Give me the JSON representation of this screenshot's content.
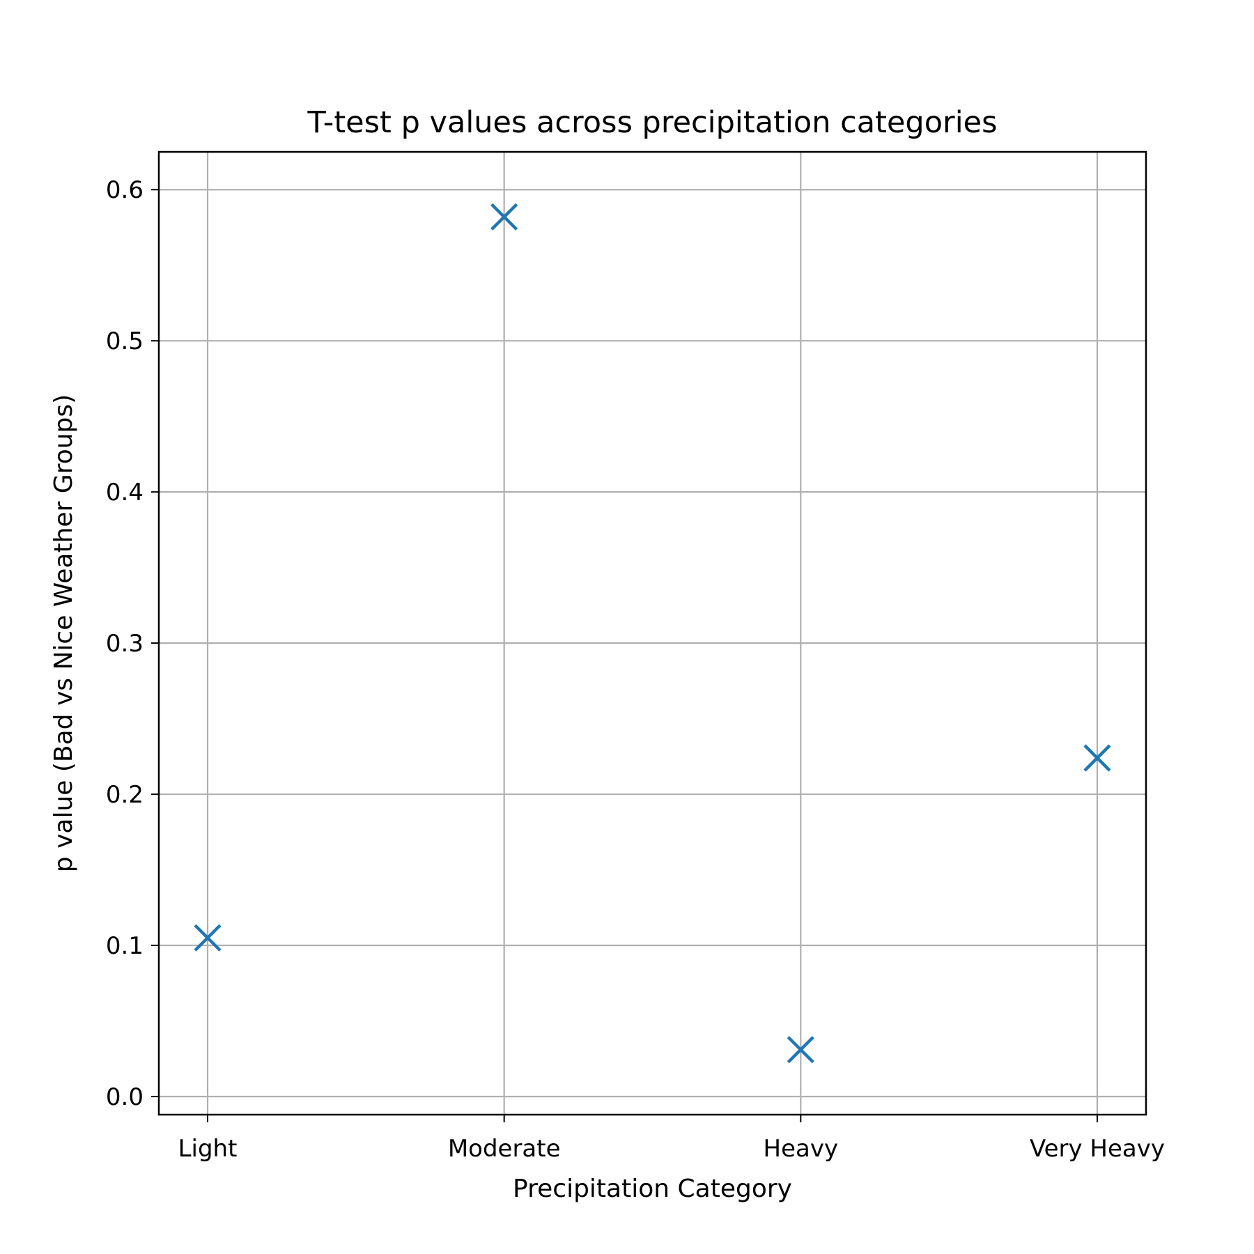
{
  "chart_data": {
    "type": "scatter",
    "title": "T-test p values across precipitation categories",
    "xlabel": "Precipitation Category",
    "ylabel": "p value (Bad vs Nice Weather Groups)",
    "categories": [
      "Light",
      "Moderate",
      "Heavy",
      "Very Heavy"
    ],
    "series": [
      {
        "values": [
          0.105,
          0.582,
          0.031,
          0.224
        ],
        "marker": "x",
        "color": "#1f77b4"
      }
    ],
    "ylim": [
      -0.012,
      0.625
    ],
    "yticks": [
      0.0,
      0.1,
      0.2,
      0.3,
      0.4,
      0.5,
      0.6
    ],
    "ytick_labels": [
      "0.0",
      "0.1",
      "0.2",
      "0.3",
      "0.4",
      "0.5",
      "0.6"
    ],
    "grid": true
  }
}
